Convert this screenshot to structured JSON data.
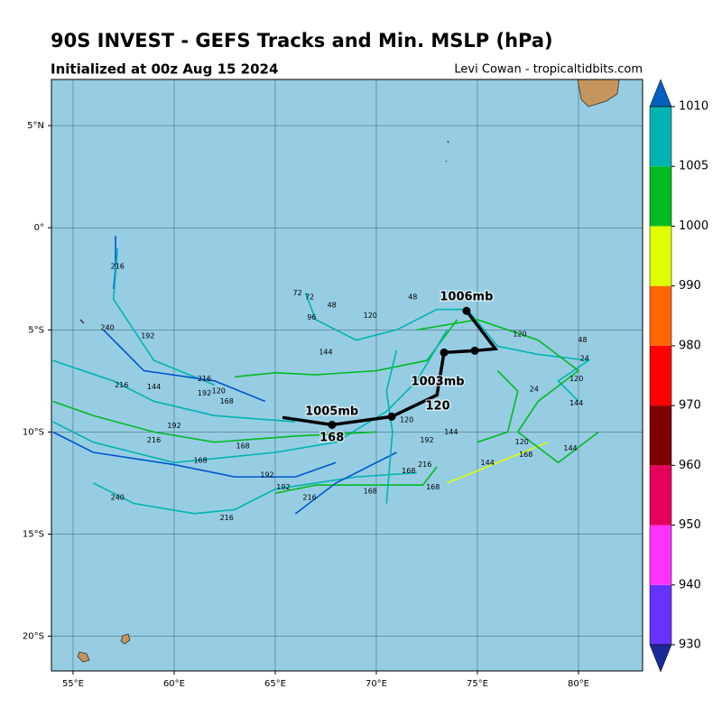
{
  "header": {
    "title": "90S INVEST - GEFS Tracks and Min. MSLP (hPa)",
    "subtitle": "Initialized at 00z Aug 15 2024",
    "credit": "Levi Cowan - tropicaltidbits.com"
  },
  "map": {
    "lonlim": [
      53.93,
      83.17
    ],
    "latlim": [
      -21.7,
      7.26
    ],
    "grid": true,
    "lonticks": [
      {
        "value": 55,
        "label": "55°E"
      },
      {
        "value": 60,
        "label": "60°E"
      },
      {
        "value": 65,
        "label": "65°E"
      },
      {
        "value": 70,
        "label": "70°E"
      },
      {
        "value": 75,
        "label": "75°E"
      },
      {
        "value": 80,
        "label": "80°E"
      }
    ],
    "latticks": [
      {
        "value": 5,
        "label": "5°N"
      },
      {
        "value": 0,
        "label": "0°"
      },
      {
        "value": -5,
        "label": "5°S"
      },
      {
        "value": -10,
        "label": "10°S"
      },
      {
        "value": -15,
        "label": "15°S"
      },
      {
        "value": -20,
        "label": "20°S"
      }
    ],
    "tracks": [
      {
        "color": "#00b3b3",
        "lon": [
          74.5,
          76,
          78,
          80.5,
          79,
          80
        ],
        "lat": [
          -4,
          -5.8,
          -6.2,
          -6.5,
          -7.5,
          -8.5
        ]
      },
      {
        "color": "#00bb22",
        "lon": [
          74,
          72.5,
          70,
          67,
          65,
          63
        ],
        "lat": [
          -4.5,
          -6.5,
          -7,
          -7.2,
          -7.1,
          -7.3
        ]
      },
      {
        "color": "#00b3b3",
        "lon": [
          73.5,
          72,
          70.5,
          68,
          65,
          60,
          56,
          54
        ],
        "lat": [
          -5,
          -7.5,
          -9,
          -10.5,
          -11,
          -11.5,
          -10.5,
          -9.5
        ]
      },
      {
        "color": "#0055cc",
        "lon": [
          57.1,
          57.1,
          57
        ],
        "lat": [
          -0.4,
          -2,
          -3
        ]
      },
      {
        "color": "#00b3b3",
        "lon": [
          57.2,
          57,
          58,
          59,
          62
        ],
        "lat": [
          -1,
          -3.5,
          -5,
          -6.5,
          -7.7
        ]
      },
      {
        "color": "#0055cc",
        "lon": [
          56.5,
          58.5,
          62,
          64.5
        ],
        "lat": [
          -5,
          -7,
          -7.5,
          -8.5
        ]
      },
      {
        "color": "#00b3b3",
        "lon": [
          54,
          57,
          59,
          62,
          66
        ],
        "lat": [
          -6.5,
          -7.5,
          -8.5,
          -9.2,
          -9.5
        ]
      },
      {
        "color": "#00bb22",
        "lon": [
          54,
          56,
          59,
          62,
          66,
          70
        ],
        "lat": [
          -8.5,
          -9.2,
          -10,
          -10.5,
          -10.2,
          -10
        ]
      },
      {
        "color": "#0055cc",
        "lon": [
          54,
          56,
          60,
          63,
          66,
          68
        ],
        "lat": [
          -10,
          -11,
          -11.6,
          -12.2,
          -12.2,
          -11.5
        ]
      },
      {
        "color": "#00b3b3",
        "lon": [
          56,
          58,
          61,
          63,
          65,
          69,
          72
        ],
        "lat": [
          -12.5,
          -13.5,
          -14,
          -13.8,
          -12.8,
          -12.2,
          -12
        ]
      },
      {
        "color": "#00bb22",
        "lon": [
          65,
          67,
          72.3,
          73
        ],
        "lat": [
          -13,
          -12.6,
          -12.6,
          -11.7
        ]
      },
      {
        "color": "#0055cc",
        "lon": [
          66,
          68,
          71
        ],
        "lat": [
          -14,
          -12.5,
          -11
        ]
      },
      {
        "color": "#ddff00",
        "lon": [
          73.5,
          76,
          78.5
        ],
        "lat": [
          -12.5,
          -11.5,
          -10.5
        ]
      },
      {
        "color": "#00bb22",
        "lon": [
          72,
          75,
          78,
          80,
          78,
          77,
          79,
          81
        ],
        "lat": [
          -5,
          -4.5,
          -5.5,
          -7,
          -8.5,
          -10,
          -11.5,
          -10
        ]
      },
      {
        "color": "#00b3b3",
        "lon": [
          66.5,
          67,
          69,
          71,
          73,
          74.5
        ],
        "lat": [
          -3.2,
          -4.5,
          -5.5,
          -5,
          -4,
          -4
        ]
      },
      {
        "color": "#00b3b3",
        "lon": [
          71,
          70.5,
          70.8,
          70.5
        ],
        "lat": [
          -6,
          -8,
          -10,
          -13.5
        ]
      },
      {
        "color": "#00bb22",
        "lon": [
          76,
          77,
          76.5,
          75
        ],
        "lat": [
          -7,
          -8,
          -10,
          -10.5
        ]
      }
    ],
    "track_labels": [
      {
        "text": "216",
        "lon": 57.2,
        "lat": -1.9
      },
      {
        "text": "240",
        "lon": 56.7,
        "lat": -4.9
      },
      {
        "text": "192",
        "lon": 58.7,
        "lat": -5.3
      },
      {
        "text": "72",
        "lon": 66.1,
        "lat": -3.2
      },
      {
        "text": "72",
        "lon": 66.7,
        "lat": -3.4
      },
      {
        "text": "48",
        "lon": 67.8,
        "lat": -3.8
      },
      {
        "text": "96",
        "lon": 66.8,
        "lat": -4.4
      },
      {
        "text": "120",
        "lon": 69.7,
        "lat": -4.3
      },
      {
        "text": "48",
        "lon": 71.8,
        "lat": -3.4
      },
      {
        "text": "144",
        "lon": 67.5,
        "lat": -6.1
      },
      {
        "text": "216",
        "lon": 61.5,
        "lat": -7.4
      },
      {
        "text": "144",
        "lon": 59,
        "lat": -7.8
      },
      {
        "text": "216",
        "lon": 57.4,
        "lat": -7.7
      },
      {
        "text": "192",
        "lon": 61.5,
        "lat": -8.1
      },
      {
        "text": "168",
        "lon": 62.6,
        "lat": -8.5
      },
      {
        "text": "120",
        "lon": 62.2,
        "lat": -8.0
      },
      {
        "text": "192",
        "lon": 60,
        "lat": -9.7
      },
      {
        "text": "216",
        "lon": 59,
        "lat": -10.4
      },
      {
        "text": "168",
        "lon": 63.4,
        "lat": -10.7
      },
      {
        "text": "168",
        "lon": 61.3,
        "lat": -11.4
      },
      {
        "text": "192",
        "lon": 64.6,
        "lat": -12.1
      },
      {
        "text": "192",
        "lon": 65.4,
        "lat": -12.7
      },
      {
        "text": "216",
        "lon": 66.7,
        "lat": -13.2
      },
      {
        "text": "240",
        "lon": 57.2,
        "lat": -13.2
      },
      {
        "text": "216",
        "lon": 62.6,
        "lat": -14.2
      },
      {
        "text": "168",
        "lon": 69.7,
        "lat": -12.9
      },
      {
        "text": "168",
        "lon": 72.8,
        "lat": -12.7
      },
      {
        "text": "216",
        "lon": 72.4,
        "lat": -11.6
      },
      {
        "text": "168",
        "lon": 71.6,
        "lat": -11.9
      },
      {
        "text": "144",
        "lon": 75.5,
        "lat": -11.5
      },
      {
        "text": "168",
        "lon": 77.4,
        "lat": -11.1
      },
      {
        "text": "120",
        "lon": 77.2,
        "lat": -10.5
      },
      {
        "text": "144",
        "lon": 79.6,
        "lat": -10.8
      },
      {
        "text": "192",
        "lon": 72.5,
        "lat": -10.4
      },
      {
        "text": "144",
        "lon": 73.7,
        "lat": -10.0
      },
      {
        "text": "120",
        "lon": 71.5,
        "lat": -9.4
      },
      {
        "text": "24",
        "lon": 77.8,
        "lat": -7.9
      },
      {
        "text": "120",
        "lon": 79.9,
        "lat": -7.4
      },
      {
        "text": "48",
        "lon": 80.2,
        "lat": -5.5
      },
      {
        "text": "24",
        "lon": 80.3,
        "lat": -6.4
      },
      {
        "text": "144",
        "lon": 79.9,
        "lat": -8.6
      },
      {
        "text": "120",
        "lon": 77.1,
        "lat": -5.2
      }
    ],
    "mean_track": {
      "lon": [
        74.46,
        75.89,
        74.87,
        73.35,
        73.0,
        70.76,
        67.81,
        65.36
      ],
      "lat": [
        -4.07,
        -5.93,
        -6.02,
        -6.11,
        -8.19,
        -9.25,
        -9.65,
        -9.29
      ]
    },
    "mean_labels": [
      {
        "text": "1006mb",
        "lon": 74.46,
        "lat": -3.4
      },
      {
        "text": "1003mb",
        "lon": 73.04,
        "lat": -7.55
      },
      {
        "text": "120",
        "lon": 73.04,
        "lat": -8.75
      },
      {
        "text": "1005mb",
        "lon": 67.8,
        "lat": -9.0
      },
      {
        "text": "168",
        "lon": 67.8,
        "lat": -10.3
      }
    ]
  },
  "colorbar": {
    "ticks": [
      930,
      940,
      950,
      960,
      970,
      980,
      990,
      1000,
      1005,
      1010
    ],
    "colors": [
      "#6633ff",
      "#ff33ff",
      "#e6005c",
      "#800000",
      "#ff0000",
      "#ff6600",
      "#ddff00",
      "#00bb22",
      "#00b3b3"
    ],
    "under_color": "#1a2a99",
    "over_color": "#0060c0"
  }
}
